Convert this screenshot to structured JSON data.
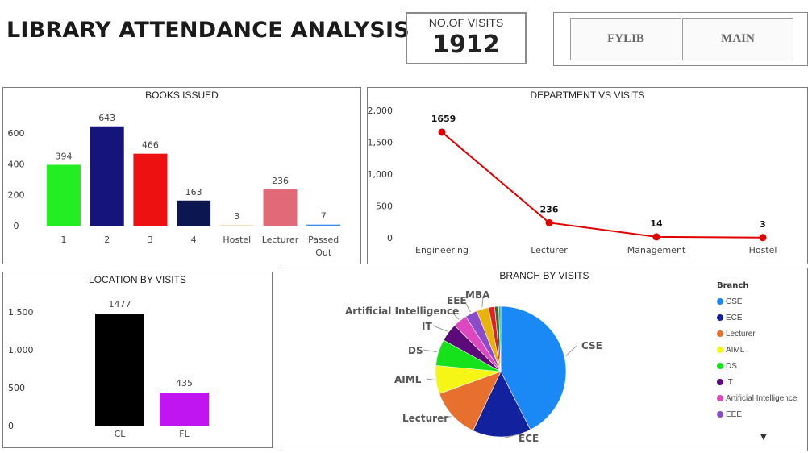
{
  "header": {
    "title": "LIBRARY ATTENDANCE ANALYSIS",
    "kpi": {
      "label": "NO.OF VISITS",
      "value": "1912"
    },
    "buttons": [
      {
        "label": "FYLIB"
      },
      {
        "label": "MAIN"
      }
    ]
  },
  "chart_data": [
    {
      "id": "books",
      "type": "bar",
      "title": "BOOKS ISSUED",
      "categories": [
        "1",
        "2",
        "3",
        "4",
        "Hostel",
        "Lecturer",
        "Passed Out"
      ],
      "values": [
        394,
        643,
        466,
        163,
        3,
        236,
        7
      ],
      "colors": [
        "#22ee22",
        "#14147a",
        "#ee1111",
        "#0c1650",
        "#f5e0c0",
        "#e06a78",
        "#3d8fee"
      ],
      "y_ticks": [
        0,
        200,
        400,
        600
      ],
      "ylim": [
        0,
        680
      ],
      "grid": false
    },
    {
      "id": "dept",
      "type": "line",
      "title": "DEPARTMENT VS VISITS",
      "categories": [
        "Engineering",
        "Lecturer",
        "Management",
        "Hostel"
      ],
      "values": [
        1659,
        236,
        14,
        3
      ],
      "y_tick_labels": [
        "0",
        "500",
        "1,000",
        "1,500",
        "2,000"
      ],
      "y_ticks": [
        0,
        500,
        1000,
        1500,
        2000
      ],
      "ylim": [
        0,
        2000
      ],
      "color": "#e00000",
      "grid": false
    },
    {
      "id": "location",
      "type": "bar",
      "title": "LOCATION BY VISITS",
      "categories": [
        "CL",
        "FL"
      ],
      "values": [
        1477,
        435
      ],
      "colors": [
        "#000000",
        "#c014f0"
      ],
      "y_tick_labels": [
        "0",
        "500",
        "1,000",
        "1,500"
      ],
      "y_ticks": [
        0,
        500,
        1000,
        1500
      ],
      "ylim": [
        0,
        1600
      ],
      "grid": false
    },
    {
      "id": "branch",
      "type": "pie",
      "title": "BRANCH BY VISITS",
      "legend_title": "Branch",
      "legend_position": "right",
      "slices": [
        {
          "label": "CSE",
          "value": 42.5,
          "color": "#1a88f5"
        },
        {
          "label": "ECE",
          "value": 14.5,
          "color": "#12229e"
        },
        {
          "label": "Lecturer",
          "value": 12.5,
          "color": "#e8702e"
        },
        {
          "label": "AIML",
          "value": 7.0,
          "color": "#f5f516"
        },
        {
          "label": "DS",
          "value": 6.5,
          "color": "#15e21a"
        },
        {
          "label": "IT",
          "value": 4.5,
          "color": "#5c0a7a"
        },
        {
          "label": "Artificial Intelligence",
          "value": 3.5,
          "color": "#dd48c0"
        },
        {
          "label": "EEE",
          "value": 3.0,
          "color": "#8a4cc8"
        },
        {
          "label": "MBA",
          "value": 3.0,
          "color": "#e8b40c"
        },
        {
          "label": "",
          "value": 1.5,
          "color": "#e0202a"
        },
        {
          "label": "",
          "value": 1.0,
          "color": "#2c6e30"
        },
        {
          "label": "",
          "value": 0.5,
          "color": "#24b0a0"
        }
      ],
      "legend_items": [
        "CSE",
        "ECE",
        "Lecturer",
        "AIML",
        "DS",
        "IT",
        "Artificial Intelligence",
        "EEE"
      ]
    }
  ]
}
